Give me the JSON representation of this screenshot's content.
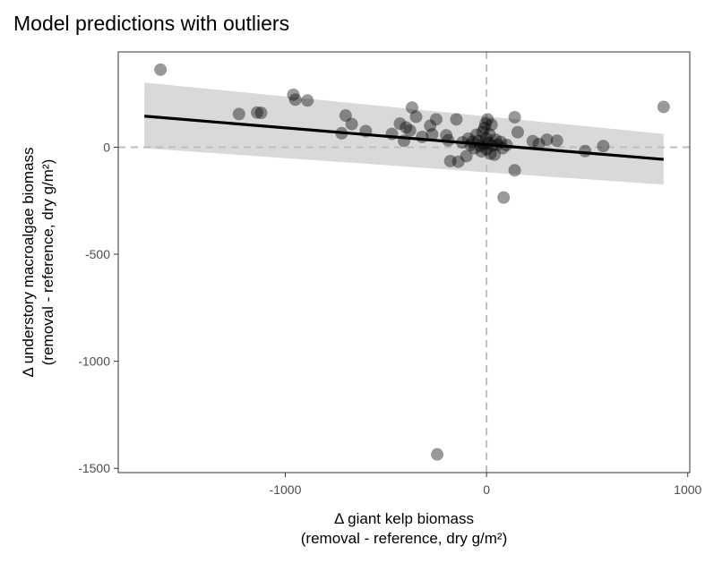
{
  "chart_data": {
    "type": "scatter",
    "title": "Model predictions with outliers",
    "xlabel": [
      "Δ giant kelp biomass",
      "(removal - reference, dry g/m²)"
    ],
    "ylabel": [
      "Δ understory macroalgae biomass",
      "(removal - reference, dry g/m²)"
    ],
    "xlim": [
      -1830,
      1010
    ],
    "ylim": [
      -1520,
      445
    ],
    "x_ticks": [
      -1000,
      0,
      1000
    ],
    "x_tick_labels": [
      "-1000",
      "0",
      "1000"
    ],
    "y_ticks": [
      -1500,
      -1000,
      -500,
      0
    ],
    "y_tick_labels": [
      "-1500",
      "-1000",
      "-500",
      "0"
    ],
    "grid": false,
    "reference_lines": {
      "x": 0,
      "y": 0,
      "style": "dashed",
      "color": "#bdbdbd"
    },
    "fit": {
      "x": [
        -1700,
        880
      ],
      "y": [
        145,
        -57
      ],
      "ci_lower": [
        -5,
        -175
      ],
      "ci_upper": [
        302,
        62
      ],
      "line_color": "#000000",
      "band_color": "#d9d9d9"
    },
    "point_color": "#000000",
    "point_opacity": 0.4,
    "points": [
      {
        "x": -1620,
        "y": 362
      },
      {
        "x": -1230,
        "y": 155
      },
      {
        "x": -1140,
        "y": 162
      },
      {
        "x": -1120,
        "y": 160
      },
      {
        "x": -960,
        "y": 245
      },
      {
        "x": -950,
        "y": 222
      },
      {
        "x": -890,
        "y": 218
      },
      {
        "x": -720,
        "y": 65
      },
      {
        "x": -700,
        "y": 148
      },
      {
        "x": -670,
        "y": 108
      },
      {
        "x": -600,
        "y": 75
      },
      {
        "x": -470,
        "y": 62
      },
      {
        "x": -430,
        "y": 110
      },
      {
        "x": -410,
        "y": 30
      },
      {
        "x": -400,
        "y": 92
      },
      {
        "x": -380,
        "y": 78
      },
      {
        "x": -370,
        "y": 185
      },
      {
        "x": -350,
        "y": 142
      },
      {
        "x": -320,
        "y": 48
      },
      {
        "x": -280,
        "y": 100
      },
      {
        "x": -270,
        "y": 60
      },
      {
        "x": -250,
        "y": 130
      },
      {
        "x": -200,
        "y": 55
      },
      {
        "x": -190,
        "y": 32
      },
      {
        "x": -180,
        "y": -65
      },
      {
        "x": -150,
        "y": 130
      },
      {
        "x": -140,
        "y": -68
      },
      {
        "x": -120,
        "y": 22
      },
      {
        "x": -100,
        "y": -42
      },
      {
        "x": -90,
        "y": 40
      },
      {
        "x": -80,
        "y": 10
      },
      {
        "x": -70,
        "y": 25
      },
      {
        "x": -60,
        "y": -5
      },
      {
        "x": -50,
        "y": 58
      },
      {
        "x": -40,
        "y": 30
      },
      {
        "x": -30,
        "y": 5
      },
      {
        "x": -25,
        "y": -20
      },
      {
        "x": -20,
        "y": 72
      },
      {
        "x": -15,
        "y": 15
      },
      {
        "x": -10,
        "y": 90
      },
      {
        "x": -5,
        "y": 110
      },
      {
        "x": 0,
        "y": 40
      },
      {
        "x": 0,
        "y": -10
      },
      {
        "x": 5,
        "y": 130
      },
      {
        "x": 10,
        "y": 20
      },
      {
        "x": 15,
        "y": 60
      },
      {
        "x": 20,
        "y": -30
      },
      {
        "x": 25,
        "y": 105
      },
      {
        "x": 30,
        "y": 8
      },
      {
        "x": 40,
        "y": -35
      },
      {
        "x": 45,
        "y": 35
      },
      {
        "x": 55,
        "y": 12
      },
      {
        "x": 70,
        "y": 25
      },
      {
        "x": 80,
        "y": -5
      },
      {
        "x": 85,
        "y": -235
      },
      {
        "x": 100,
        "y": 10
      },
      {
        "x": 140,
        "y": 140
      },
      {
        "x": 140,
        "y": -108
      },
      {
        "x": 155,
        "y": 70
      },
      {
        "x": 230,
        "y": 28
      },
      {
        "x": 260,
        "y": 15
      },
      {
        "x": 300,
        "y": 35
      },
      {
        "x": 350,
        "y": 30
      },
      {
        "x": 490,
        "y": -18
      },
      {
        "x": 580,
        "y": 5
      },
      {
        "x": 880,
        "y": 188
      },
      {
        "x": -245,
        "y": -1435
      }
    ]
  }
}
